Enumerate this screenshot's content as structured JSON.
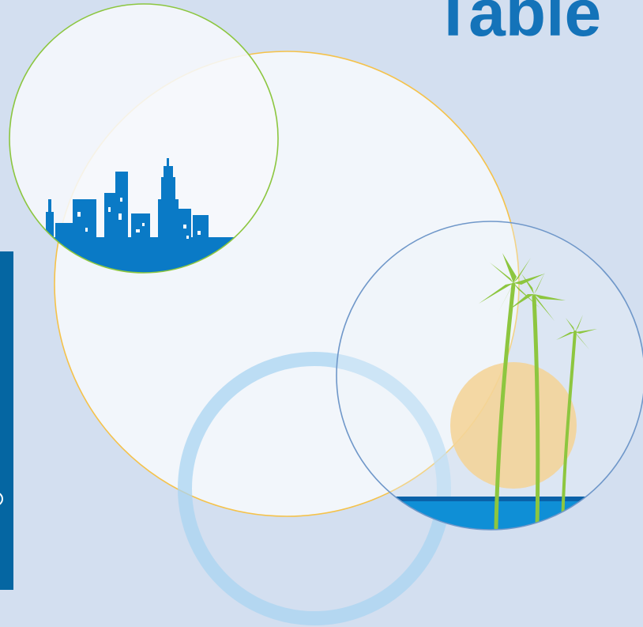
{
  "header": {
    "title": "Table"
  },
  "colors": {
    "background": "#d3dff0",
    "title": "#1473b9",
    "sidebar_bar": "#0566a2",
    "green_ring": "#8cc63f",
    "yellow_ring": "#f5c24a",
    "blue_ring": "#6f97c9",
    "light_blue_ring": "#a9d4f2",
    "skyline": "#0a7ac6",
    "palm": "#8dc63f",
    "sun": "#f4d497",
    "sea": "#0f8fd6"
  },
  "artwork": {
    "skyline_icon": "city-skyline-icon",
    "palm_icon": "palm-tree-icon",
    "sun_icon": "sun-icon",
    "sea_icon": "sea-icon"
  }
}
